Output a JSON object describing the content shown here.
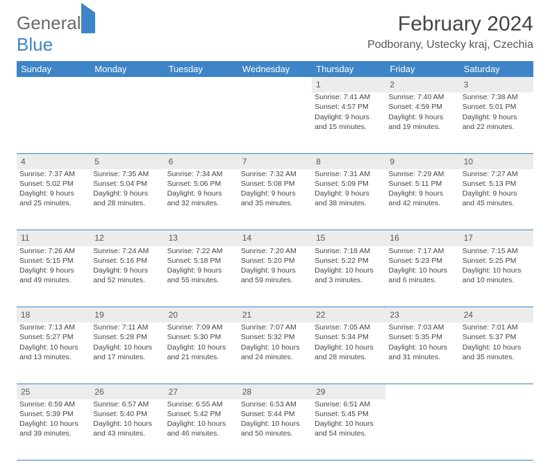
{
  "logo": {
    "word1": "General",
    "word2": "Blue"
  },
  "title": "February 2024",
  "subtitle": "Podborany, Ustecky kraj, Czechia",
  "colors": {
    "header_bg": "#3d85c6",
    "header_text": "#ffffff",
    "daynum_bg": "#ececec",
    "rule": "#3d85c6",
    "text": "#444444",
    "logo_gray": "#6a6a6a",
    "logo_blue": "#3d85c6",
    "page_bg": "#ffffff"
  },
  "font": {
    "title_size": 30,
    "subtitle_size": 16,
    "dayhdr_size": 13,
    "body_size": 10.5
  },
  "dayHeaders": [
    "Sunday",
    "Monday",
    "Tuesday",
    "Wednesday",
    "Thursday",
    "Friday",
    "Saturday"
  ],
  "weeks": [
    [
      null,
      null,
      null,
      null,
      {
        "n": "1",
        "sr": "7:41 AM",
        "ss": "4:57 PM",
        "dl": "9 hours and 15 minutes."
      },
      {
        "n": "2",
        "sr": "7:40 AM",
        "ss": "4:59 PM",
        "dl": "9 hours and 19 minutes."
      },
      {
        "n": "3",
        "sr": "7:38 AM",
        "ss": "5:01 PM",
        "dl": "9 hours and 22 minutes."
      }
    ],
    [
      {
        "n": "4",
        "sr": "7:37 AM",
        "ss": "5:02 PM",
        "dl": "9 hours and 25 minutes."
      },
      {
        "n": "5",
        "sr": "7:35 AM",
        "ss": "5:04 PM",
        "dl": "9 hours and 28 minutes."
      },
      {
        "n": "6",
        "sr": "7:34 AM",
        "ss": "5:06 PM",
        "dl": "9 hours and 32 minutes."
      },
      {
        "n": "7",
        "sr": "7:32 AM",
        "ss": "5:08 PM",
        "dl": "9 hours and 35 minutes."
      },
      {
        "n": "8",
        "sr": "7:31 AM",
        "ss": "5:09 PM",
        "dl": "9 hours and 38 minutes."
      },
      {
        "n": "9",
        "sr": "7:29 AM",
        "ss": "5:11 PM",
        "dl": "9 hours and 42 minutes."
      },
      {
        "n": "10",
        "sr": "7:27 AM",
        "ss": "5:13 PM",
        "dl": "9 hours and 45 minutes."
      }
    ],
    [
      {
        "n": "11",
        "sr": "7:26 AM",
        "ss": "5:15 PM",
        "dl": "9 hours and 49 minutes."
      },
      {
        "n": "12",
        "sr": "7:24 AM",
        "ss": "5:16 PM",
        "dl": "9 hours and 52 minutes."
      },
      {
        "n": "13",
        "sr": "7:22 AM",
        "ss": "5:18 PM",
        "dl": "9 hours and 55 minutes."
      },
      {
        "n": "14",
        "sr": "7:20 AM",
        "ss": "5:20 PM",
        "dl": "9 hours and 59 minutes."
      },
      {
        "n": "15",
        "sr": "7:18 AM",
        "ss": "5:22 PM",
        "dl": "10 hours and 3 minutes."
      },
      {
        "n": "16",
        "sr": "7:17 AM",
        "ss": "5:23 PM",
        "dl": "10 hours and 6 minutes."
      },
      {
        "n": "17",
        "sr": "7:15 AM",
        "ss": "5:25 PM",
        "dl": "10 hours and 10 minutes."
      }
    ],
    [
      {
        "n": "18",
        "sr": "7:13 AM",
        "ss": "5:27 PM",
        "dl": "10 hours and 13 minutes."
      },
      {
        "n": "19",
        "sr": "7:11 AM",
        "ss": "5:28 PM",
        "dl": "10 hours and 17 minutes."
      },
      {
        "n": "20",
        "sr": "7:09 AM",
        "ss": "5:30 PM",
        "dl": "10 hours and 21 minutes."
      },
      {
        "n": "21",
        "sr": "7:07 AM",
        "ss": "5:32 PM",
        "dl": "10 hours and 24 minutes."
      },
      {
        "n": "22",
        "sr": "7:05 AM",
        "ss": "5:34 PM",
        "dl": "10 hours and 28 minutes."
      },
      {
        "n": "23",
        "sr": "7:03 AM",
        "ss": "5:35 PM",
        "dl": "10 hours and 31 minutes."
      },
      {
        "n": "24",
        "sr": "7:01 AM",
        "ss": "5:37 PM",
        "dl": "10 hours and 35 minutes."
      }
    ],
    [
      {
        "n": "25",
        "sr": "6:59 AM",
        "ss": "5:39 PM",
        "dl": "10 hours and 39 minutes."
      },
      {
        "n": "26",
        "sr": "6:57 AM",
        "ss": "5:40 PM",
        "dl": "10 hours and 43 minutes."
      },
      {
        "n": "27",
        "sr": "6:55 AM",
        "ss": "5:42 PM",
        "dl": "10 hours and 46 minutes."
      },
      {
        "n": "28",
        "sr": "6:53 AM",
        "ss": "5:44 PM",
        "dl": "10 hours and 50 minutes."
      },
      {
        "n": "29",
        "sr": "6:51 AM",
        "ss": "5:45 PM",
        "dl": "10 hours and 54 minutes."
      },
      null,
      null
    ]
  ],
  "labels": {
    "sunrise": "Sunrise: ",
    "sunset": "Sunset: ",
    "daylight": "Daylight: "
  }
}
